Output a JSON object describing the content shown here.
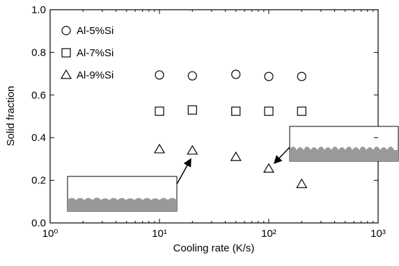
{
  "chart_data": {
    "type": "scatter",
    "x_label": "Cooling rate  (K/s)",
    "y_label": "Solid fraction",
    "log_x": true,
    "xlim": [
      1,
      1000
    ],
    "xticks": [
      {
        "value": 1,
        "label": "10⁰"
      },
      {
        "value": 10,
        "label": "10¹"
      },
      {
        "value": 100,
        "label": "10²"
      },
      {
        "value": 1000,
        "label": "10³"
      }
    ],
    "ylim": [
      0,
      1
    ],
    "yticks": [
      {
        "value": 0,
        "label": "0.0"
      },
      0.2,
      0.4,
      0.6,
      0.8,
      {
        "value": 1,
        "label": "1.0"
      }
    ],
    "series": [
      {
        "name": "Al-5%Si",
        "marker": "circle",
        "color": "#000000",
        "x": [
          10,
          20,
          50,
          100,
          200
        ],
        "values": [
          0.694,
          0.69,
          0.697,
          0.687,
          0.687
        ]
      },
      {
        "name": "Al-7%Si",
        "marker": "square",
        "color": "#000000",
        "x": [
          10,
          20,
          50,
          100,
          200
        ],
        "values": [
          0.524,
          0.53,
          0.524,
          0.524,
          0.524
        ]
      },
      {
        "name": "Al-9%Si",
        "marker": "triangle",
        "color": "#000000",
        "x": [
          10,
          20,
          50,
          100,
          200
        ],
        "values": [
          0.345,
          0.339,
          0.309,
          0.254,
          0.182
        ]
      }
    ]
  }
}
